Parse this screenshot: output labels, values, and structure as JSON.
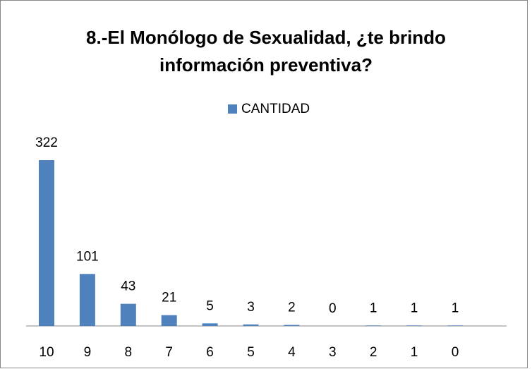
{
  "chart_data": {
    "type": "bar",
    "title": "8.-El Monólogo de Sexualidad, ¿te brindo información preventiva?",
    "categories": [
      "10",
      "9",
      "8",
      "7",
      "6",
      "5",
      "4",
      "3",
      "2",
      "1",
      "0"
    ],
    "series": [
      {
        "name": "CANTIDAD",
        "color": "#4f81bd",
        "values": [
          322,
          101,
          43,
          21,
          5,
          3,
          2,
          0,
          1,
          1,
          1
        ]
      }
    ],
    "legend": "top"
  }
}
